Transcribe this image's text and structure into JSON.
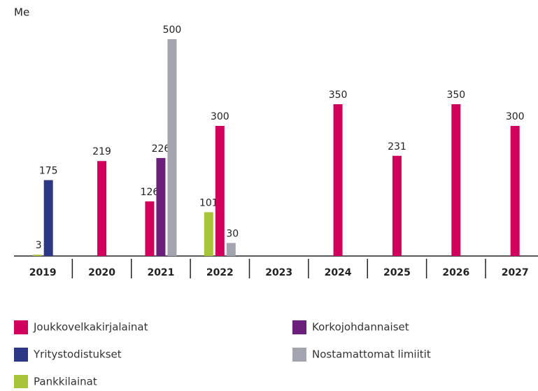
{
  "chart_data": {
    "type": "bar",
    "y_label": "Me",
    "categories": [
      "2019",
      "2020",
      "2021",
      "2022",
      "2023",
      "2024",
      "2025",
      "2026",
      "2027"
    ],
    "series": [
      {
        "name": "Joukkovelkakirjalainat",
        "color": "#d1005d",
        "values": [
          null,
          219,
          126,
          300,
          null,
          350,
          231,
          350,
          300
        ]
      },
      {
        "name": "Yritystodistukset",
        "color": "#2c3785",
        "values": [
          175,
          null,
          null,
          null,
          null,
          null,
          null,
          null,
          null
        ]
      },
      {
        "name": "Pankkilainat",
        "color": "#a7c538",
        "values": [
          3,
          null,
          null,
          101,
          null,
          null,
          null,
          null,
          null
        ]
      },
      {
        "name": "Korkojohdannaiset",
        "color": "#6b1f7b",
        "values": [
          null,
          null,
          226,
          null,
          null,
          null,
          null,
          null,
          null
        ]
      },
      {
        "name": "Nostamattomat limiitit",
        "color": "#a2a5b0",
        "values": [
          null,
          null,
          500,
          30,
          null,
          null,
          null,
          null,
          null
        ]
      }
    ],
    "ylim": [
      0,
      500
    ]
  }
}
